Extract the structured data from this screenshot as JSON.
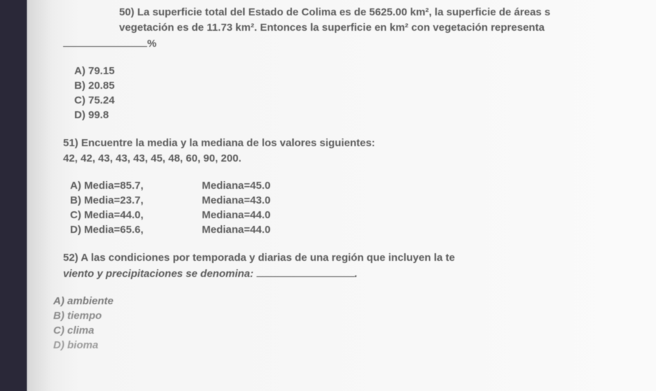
{
  "q50": {
    "prompt_l1": "50) La superficie total del Estado de Colima es de 5625.00 km², la superficie de áreas s",
    "prompt_l2_a": "vegetación es de 11.73  km². Entonces la superficie en km² con vegetación representa ",
    "percent": "%",
    "a": "A) 79.15",
    "b": "B) 20.85",
    "c": "C) 75.24",
    "d": "D) 99.8"
  },
  "q51": {
    "prompt": "51) Encuentre la media y la mediana de los valores siguientes:",
    "values": "42, 42, 43, 43, 43, 45, 48, 60, 90, 200.",
    "a_l": "A) Media=85.7,",
    "a_r": "Mediana=45.0",
    "b_l": "B) Media=23.7,",
    "b_r": "Mediana=43.0",
    "c_l": "C) Media=44.0,",
    "c_r": "Mediana=44.0",
    "d_l": "D) Media=65.6,",
    "d_r": "Mediana=44.0"
  },
  "q52": {
    "prompt_l1": "52) A las condiciones por temporada y diarias de una región que incluyen la te",
    "prompt_l2": "viento y precipitaciones se denomina:",
    "period": ".",
    "a": "A) ambiente",
    "b": "B) tiempo",
    "c": "C) clima",
    "d": "D) bioma"
  }
}
